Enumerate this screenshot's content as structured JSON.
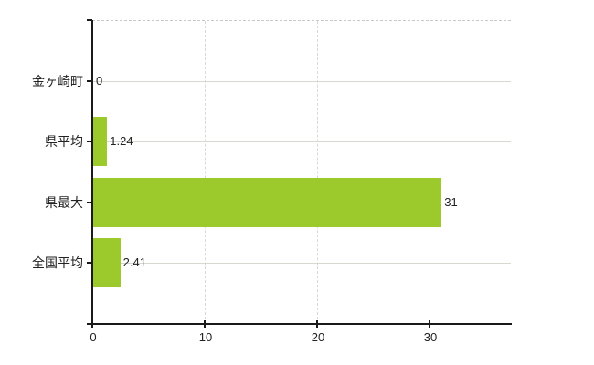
{
  "chart_data": {
    "type": "bar",
    "orientation": "horizontal",
    "title": "",
    "xlabel": "",
    "ylabel": "",
    "categories": [
      "金ヶ崎町",
      "県平均",
      "県最大",
      "全国平均"
    ],
    "values": [
      0,
      1.24,
      31,
      2.41
    ],
    "value_labels": [
      "0",
      "1.24",
      "31",
      "2.41"
    ],
    "x_ticks": [
      0,
      10,
      20,
      30
    ],
    "x_tick_labels": [
      "0",
      "10",
      "20",
      "30"
    ],
    "xlim": [
      0,
      37.3
    ],
    "grid": true,
    "legend": false,
    "colors": {
      "bar": "#9cca2d",
      "axis": "#1a1a1a",
      "hgrid": "#d5d9d2",
      "vgrid": "#d8d8d8",
      "top_border": "#c9c9c9",
      "text": "#222222",
      "background": "#ffffff"
    }
  }
}
